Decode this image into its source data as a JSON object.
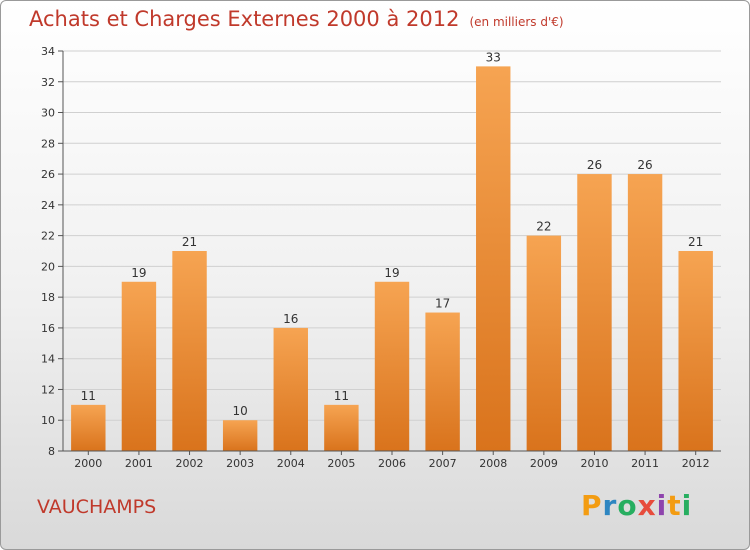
{
  "header": {
    "title": "Achats et Charges Externes 2000 à 2012",
    "unit": "(en milliers d'€)"
  },
  "place": "VAUCHAMPS",
  "logo": {
    "text": "Proxiti",
    "letters": [
      "P",
      "r",
      "o",
      "x",
      "i",
      "t",
      "i"
    ],
    "colors": [
      "#f39c12",
      "#2e86c1",
      "#27ae60",
      "#e74c3c",
      "#8e44ad",
      "#f39c12",
      "#27ae60"
    ]
  },
  "chart_data": {
    "type": "bar",
    "title": "Achats et Charges Externes 2000 à 2012",
    "subtitle": "(en milliers d'€)",
    "categories": [
      "2000",
      "2001",
      "2002",
      "2003",
      "2004",
      "2005",
      "2006",
      "2007",
      "2008",
      "2009",
      "2010",
      "2011",
      "2012"
    ],
    "values": [
      11,
      19,
      21,
      10,
      16,
      11,
      19,
      17,
      33,
      22,
      26,
      26,
      21
    ],
    "ylim": [
      8,
      34
    ],
    "yticks": [
      8,
      10,
      12,
      14,
      16,
      18,
      20,
      22,
      24,
      26,
      28,
      30,
      32,
      34
    ],
    "grid": true,
    "bar_color_top": "#f6a452",
    "bar_color_bottom": "#d9731c"
  }
}
